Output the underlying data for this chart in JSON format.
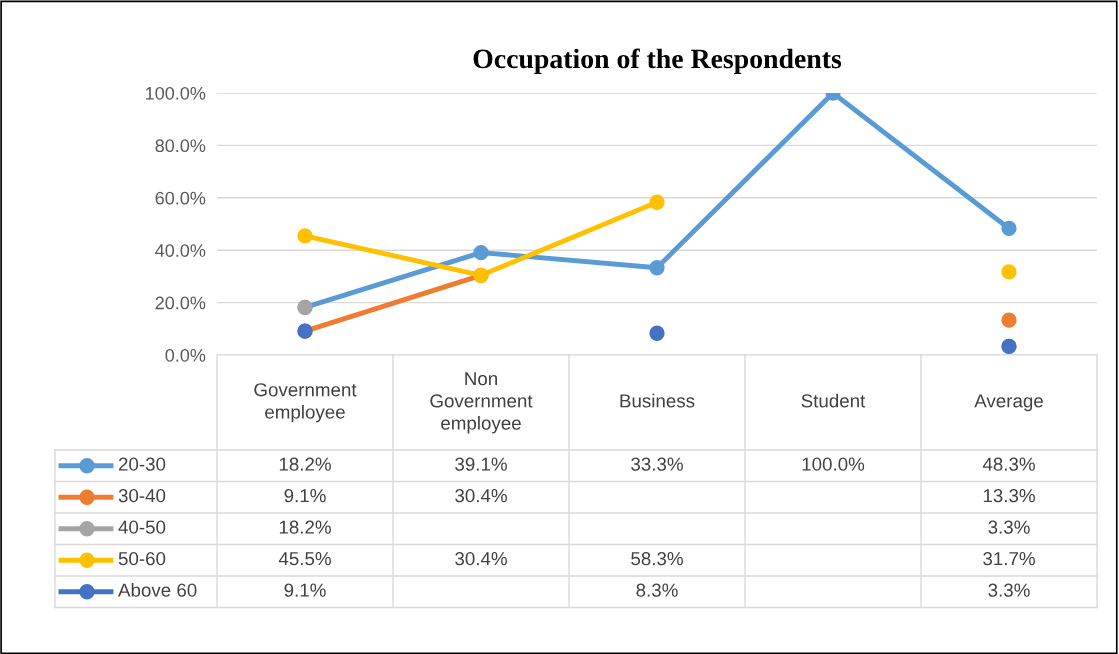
{
  "chart_data": {
    "type": "line",
    "title": "Occupation of the Respondents",
    "categories": [
      "Government\nemployee",
      "Non\nGovernment\nemployee",
      "Business",
      "Student",
      "Average"
    ],
    "series": [
      {
        "name": "20-30",
        "color": "#5b9bd5",
        "values": [
          18.2,
          39.1,
          33.3,
          100.0,
          48.3
        ],
        "value_labels": [
          "18.2%",
          "39.1%",
          "33.3%",
          "100.0%",
          "48.3%"
        ]
      },
      {
        "name": "30-40",
        "color": "#ed7d31",
        "values": [
          9.1,
          30.4,
          null,
          null,
          13.3
        ],
        "value_labels": [
          "9.1%",
          "30.4%",
          null,
          null,
          "13.3%"
        ]
      },
      {
        "name": "40-50",
        "type": "scatter",
        "color": "#a5a5a5",
        "values": [
          18.2,
          null,
          null,
          null,
          3.3
        ],
        "value_labels": [
          "18.2%",
          null,
          null,
          null,
          "3.3%"
        ]
      },
      {
        "name": "50-60",
        "color": "#ffc000",
        "values": [
          45.5,
          30.4,
          58.3,
          null,
          31.7
        ],
        "value_labels": [
          "45.5%",
          "30.4%",
          "58.3%",
          null,
          "31.7%"
        ]
      },
      {
        "name": "Above 60",
        "type": "scatter",
        "color": "#4472c4",
        "values": [
          9.1,
          null,
          8.3,
          null,
          3.3
        ],
        "value_labels": [
          "9.1%",
          null,
          "8.3%",
          null,
          "3.3%"
        ]
      }
    ],
    "ylim": [
      0,
      100
    ],
    "yticks": [
      {
        "value": 0,
        "label": "0.0%"
      },
      {
        "value": 20,
        "label": "20.0%"
      },
      {
        "value": 40,
        "label": "40.0%"
      },
      {
        "value": 60,
        "label": "60.0%"
      },
      {
        "value": 80,
        "label": "80.0%"
      },
      {
        "value": 100,
        "label": "100.0%"
      }
    ],
    "grid": "y",
    "legend": "left",
    "marker": "circle",
    "line_style": "solid"
  }
}
